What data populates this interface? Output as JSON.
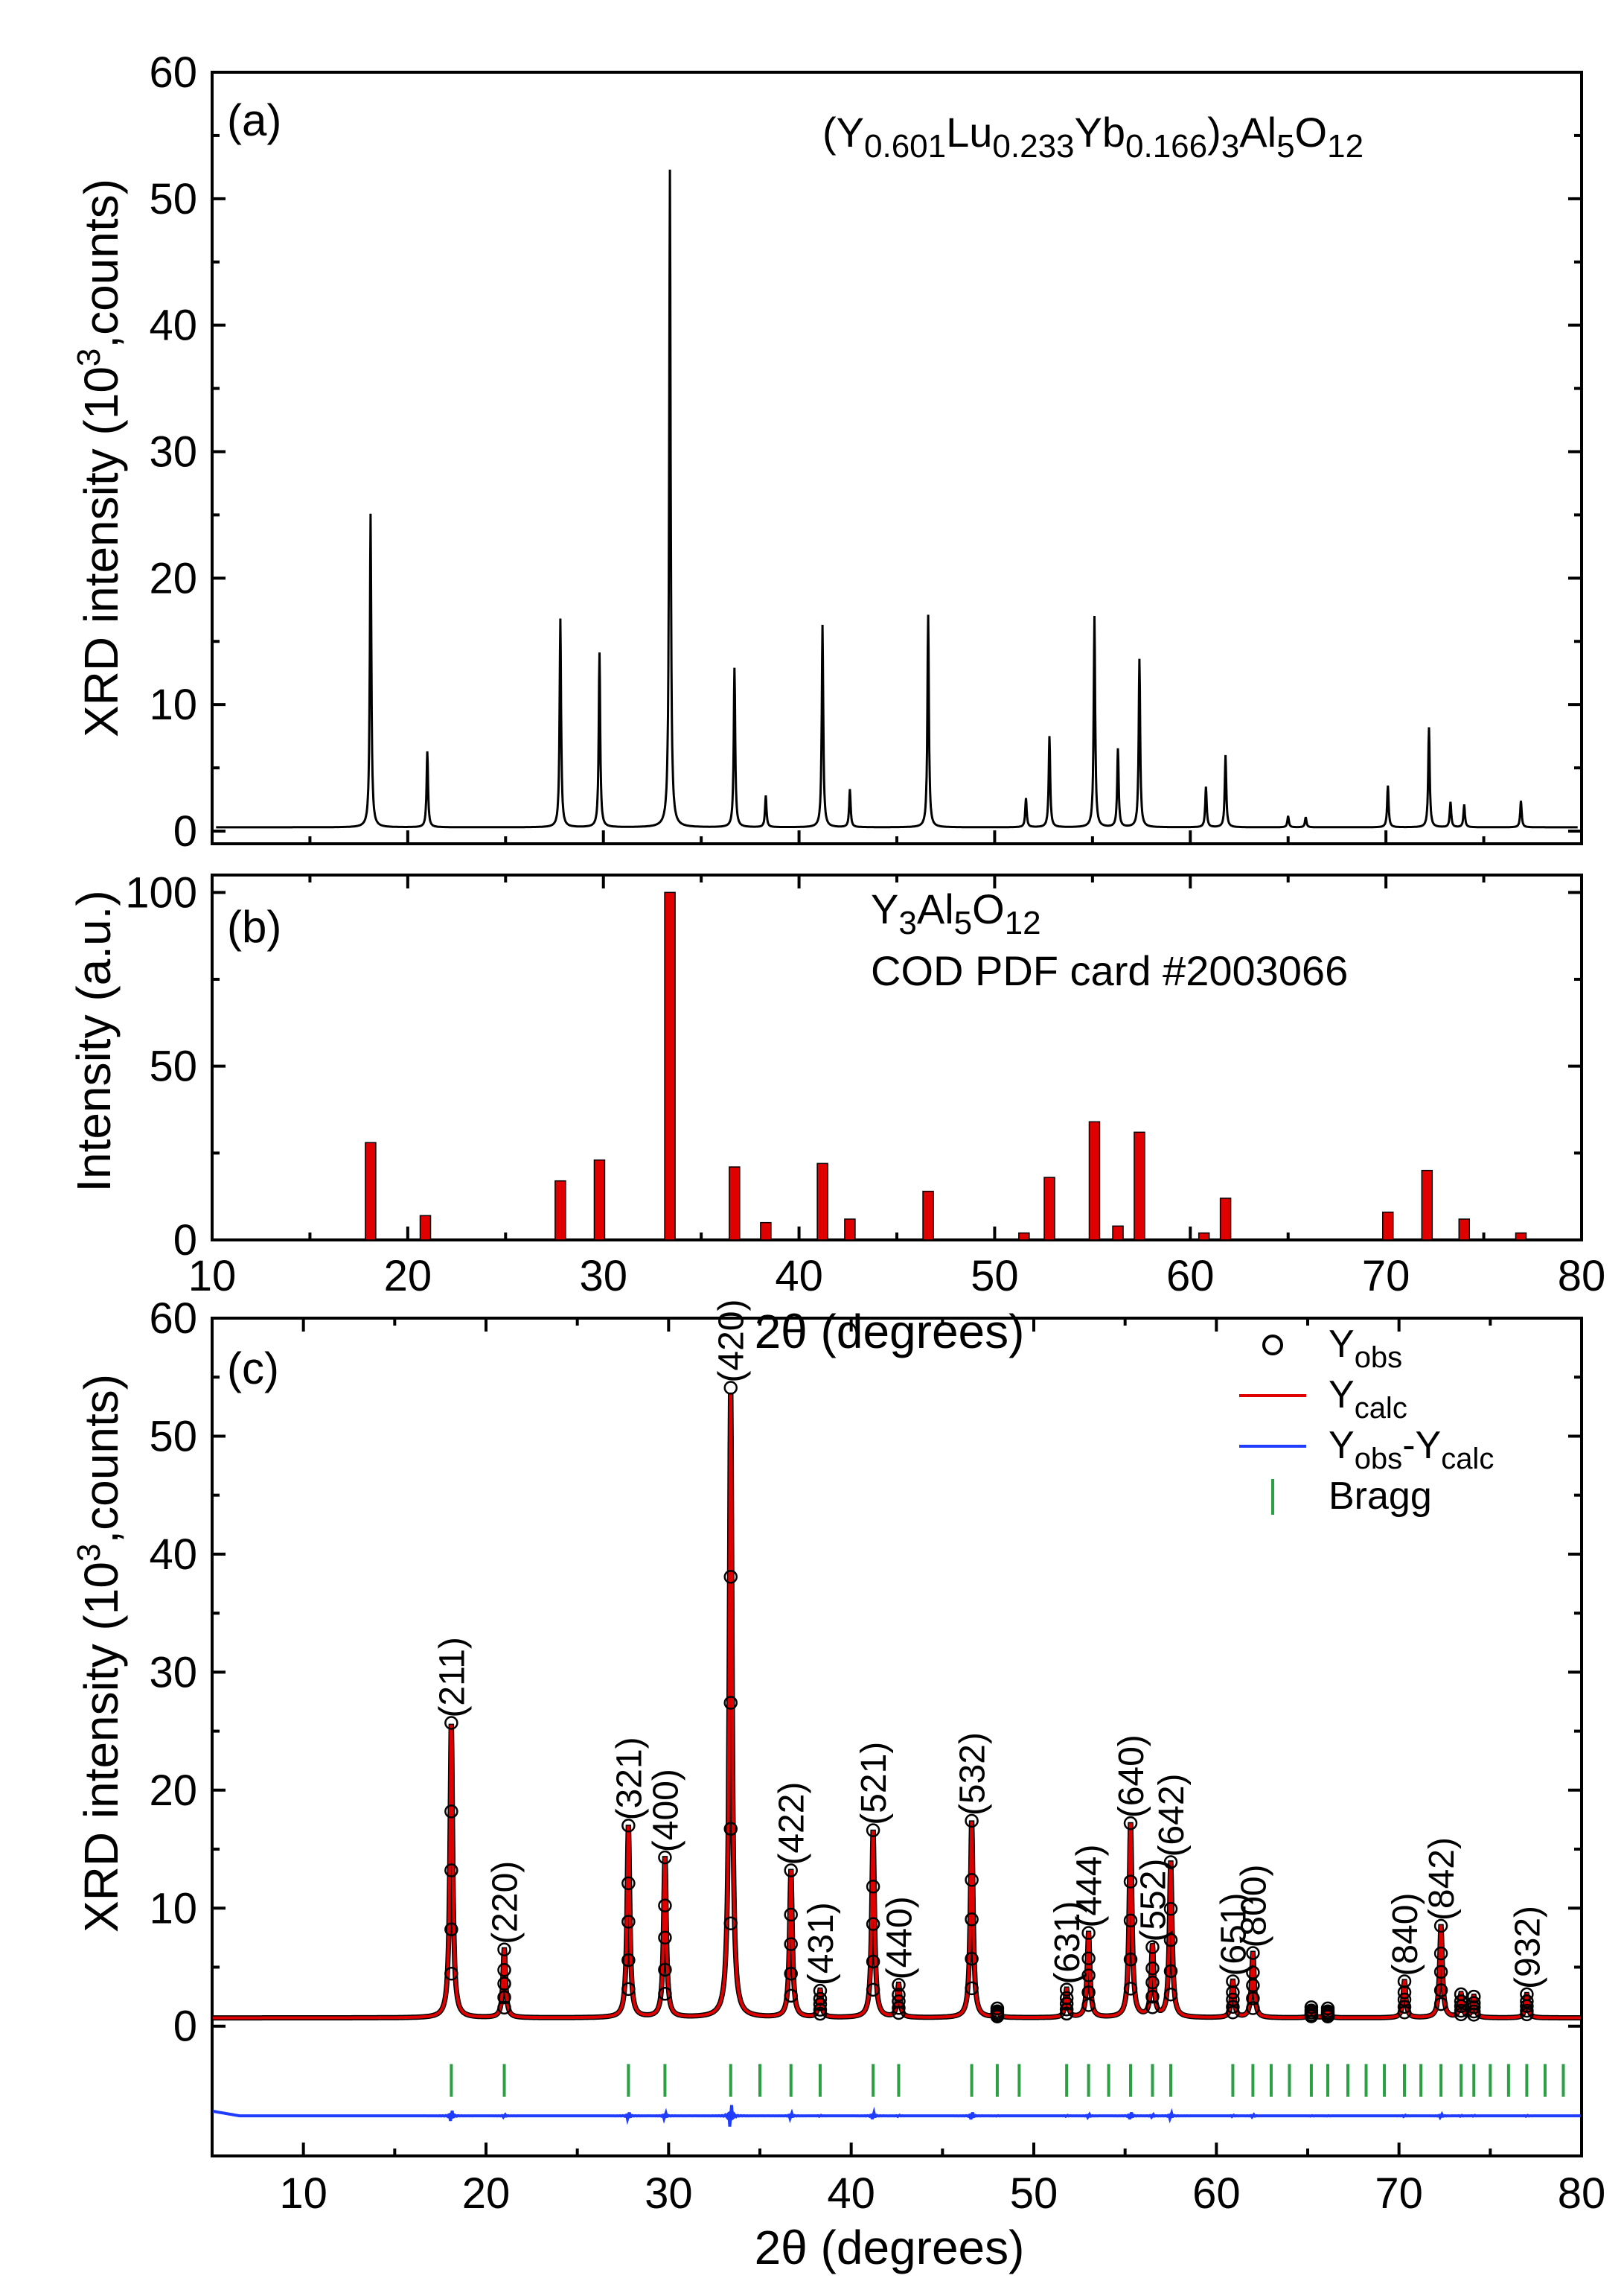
{
  "chart_data": [
    {
      "panel": "(a)",
      "type": "line",
      "annotation": {
        "base": "(Y",
        "parts": [
          "0.601",
          "Lu",
          "0.233",
          "Yb",
          "0.166",
          ")",
          "3",
          "Al",
          "5",
          "O",
          "12"
        ]
      },
      "formula_text": "(Y0.601Lu0.233Yb0.166)3Al5O12",
      "ylabel": "XRD intensity (10",
      "ylabel_sup": "3",
      "ylabel_tail": ",counts)",
      "xlim": [
        10,
        80
      ],
      "ylim": [
        -1,
        60
      ],
      "yticks": [
        0,
        10,
        20,
        30,
        40,
        50,
        60
      ],
      "background": 0.3,
      "peaks": [
        {
          "x": 18.1,
          "y": 24.8
        },
        {
          "x": 21.0,
          "y": 6.0
        },
        {
          "x": 27.8,
          "y": 16.5
        },
        {
          "x": 29.8,
          "y": 13.8
        },
        {
          "x": 33.4,
          "y": 52.0
        },
        {
          "x": 36.7,
          "y": 12.6
        },
        {
          "x": 38.3,
          "y": 2.5
        },
        {
          "x": 41.2,
          "y": 16.0
        },
        {
          "x": 42.6,
          "y": 3.0
        },
        {
          "x": 46.6,
          "y": 16.8
        },
        {
          "x": 51.6,
          "y": 2.3
        },
        {
          "x": 52.8,
          "y": 7.2
        },
        {
          "x": 55.1,
          "y": 16.7
        },
        {
          "x": 56.3,
          "y": 6.2
        },
        {
          "x": 57.4,
          "y": 13.3
        },
        {
          "x": 60.8,
          "y": 3.2
        },
        {
          "x": 61.8,
          "y": 5.7
        },
        {
          "x": 65.0,
          "y": 0.9
        },
        {
          "x": 65.9,
          "y": 0.8
        },
        {
          "x": 70.1,
          "y": 3.3
        },
        {
          "x": 72.2,
          "y": 7.9
        },
        {
          "x": 73.3,
          "y": 2.0
        },
        {
          "x": 74.0,
          "y": 1.8
        },
        {
          "x": 76.9,
          "y": 2.1
        }
      ]
    },
    {
      "panel": "(b)",
      "type": "bar",
      "title": "Y3Al5O12",
      "title_parts": [
        "Y",
        "3",
        "Al",
        "5",
        "O",
        "12"
      ],
      "subtitle": "COD PDF card #2003066",
      "ylabel": "Intensity (a.u.)",
      "xlabel": "2θ (degrees)",
      "xlim": [
        10,
        80
      ],
      "ylim": [
        0,
        105
      ],
      "yticks": [
        0,
        50,
        100
      ],
      "xticks": [
        10,
        20,
        30,
        40,
        50,
        60,
        70,
        80
      ],
      "sticks": [
        {
          "x": 18.1,
          "y": 28
        },
        {
          "x": 20.9,
          "y": 7
        },
        {
          "x": 27.8,
          "y": 17
        },
        {
          "x": 29.8,
          "y": 23
        },
        {
          "x": 33.4,
          "y": 100
        },
        {
          "x": 36.7,
          "y": 21
        },
        {
          "x": 38.3,
          "y": 5
        },
        {
          "x": 41.2,
          "y": 22
        },
        {
          "x": 42.6,
          "y": 6
        },
        {
          "x": 46.6,
          "y": 14
        },
        {
          "x": 51.5,
          "y": 2
        },
        {
          "x": 52.8,
          "y": 18
        },
        {
          "x": 55.1,
          "y": 34
        },
        {
          "x": 56.3,
          "y": 4
        },
        {
          "x": 57.4,
          "y": 31
        },
        {
          "x": 60.7,
          "y": 2
        },
        {
          "x": 61.8,
          "y": 12
        },
        {
          "x": 70.1,
          "y": 8
        },
        {
          "x": 72.1,
          "y": 20
        },
        {
          "x": 74.0,
          "y": 6
        },
        {
          "x": 76.9,
          "y": 2
        }
      ]
    },
    {
      "panel": "(c)",
      "type": "line",
      "ylabel": "XRD intensity (10",
      "ylabel_sup": "3",
      "ylabel_tail": ",counts)",
      "xlabel": "2θ (degrees)",
      "xlim": [
        5,
        80
      ],
      "ylim": [
        -11,
        60
      ],
      "yticks": [
        0,
        10,
        20,
        30,
        40,
        50,
        60
      ],
      "xticks": [
        10,
        20,
        30,
        40,
        50,
        60,
        70,
        80
      ],
      "background": 0.7,
      "difference_offset": -7.6,
      "bragg_marker_y": -4.6,
      "legend": [
        {
          "label": "Y",
          "sub": "obs",
          "kind": "circle"
        },
        {
          "label": "Y",
          "sub": "calc",
          "kind": "red-line"
        },
        {
          "label": "Y",
          "sub": "obs",
          "label2": "-Y",
          "sub2": "calc",
          "kind": "blue-line"
        },
        {
          "label": "Bragg",
          "kind": "green-tick"
        }
      ],
      "peaks": [
        {
          "x": 18.1,
          "y": 25.0,
          "hkl": "(211)"
        },
        {
          "x": 21.0,
          "y": 5.8,
          "hkl": "(220)"
        },
        {
          "x": 27.8,
          "y": 16.3,
          "hkl": "(321)"
        },
        {
          "x": 29.8,
          "y": 13.6,
          "hkl": "(400)"
        },
        {
          "x": 33.4,
          "y": 53.4,
          "hkl": "(420)"
        },
        {
          "x": 36.7,
          "y": 12.5,
          "hkl": "(422)"
        },
        {
          "x": 38.3,
          "y": 2.3,
          "hkl": "(431)"
        },
        {
          "x": 41.2,
          "y": 15.9,
          "hkl": "(521)"
        },
        {
          "x": 42.6,
          "y": 2.8,
          "hkl": "(440)"
        },
        {
          "x": 46.6,
          "y": 16.7,
          "hkl": "(532)"
        },
        {
          "x": 48.0,
          "y": 0.8,
          "hkl": ""
        },
        {
          "x": 51.8,
          "y": 2.4,
          "hkl": "(631)"
        },
        {
          "x": 53.0,
          "y": 7.2,
          "hkl": "(444)"
        },
        {
          "x": 55.3,
          "y": 16.5,
          "hkl": "(640)"
        },
        {
          "x": 56.5,
          "y": 6.0,
          "hkl": "(552)"
        },
        {
          "x": 57.5,
          "y": 13.2,
          "hkl": "(642)"
        },
        {
          "x": 60.9,
          "y": 3.1,
          "hkl": "(651)"
        },
        {
          "x": 62.0,
          "y": 5.5,
          "hkl": "(800)"
        },
        {
          "x": 65.2,
          "y": 0.9,
          "hkl": ""
        },
        {
          "x": 66.1,
          "y": 0.8,
          "hkl": ""
        },
        {
          "x": 70.3,
          "y": 3.1,
          "hkl": "(840)"
        },
        {
          "x": 72.3,
          "y": 7.8,
          "hkl": "(842)"
        },
        {
          "x": 73.4,
          "y": 2.0,
          "hkl": ""
        },
        {
          "x": 74.1,
          "y": 1.8,
          "hkl": ""
        },
        {
          "x": 77.0,
          "y": 2.0,
          "hkl": "(932)"
        }
      ],
      "bragg_positions": [
        18.1,
        21.0,
        27.8,
        29.8,
        33.4,
        35.0,
        36.7,
        38.3,
        41.2,
        42.6,
        46.6,
        48.0,
        49.2,
        51.8,
        53.0,
        54.1,
        55.3,
        56.5,
        57.5,
        60.9,
        62.0,
        63.0,
        64.0,
        65.2,
        66.1,
        67.2,
        68.2,
        69.2,
        70.3,
        71.2,
        72.3,
        73.4,
        74.1,
        75.0,
        76.0,
        77.0,
        78.0,
        79.0
      ]
    }
  ]
}
